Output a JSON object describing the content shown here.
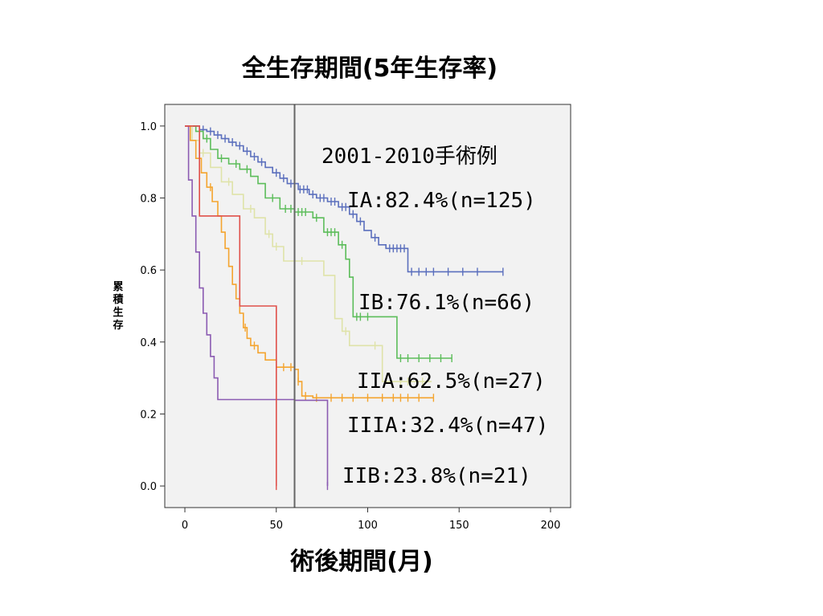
{
  "header": {
    "title": "全生存期間(5年生存率)"
  },
  "chart_data": {
    "type": "line",
    "subtype": "kaplan-meier-step",
    "title": "全生存期間(5年生存率)",
    "xlabel": "術後期間(月)",
    "ylabel": "累積生存",
    "xlim": [
      -11,
      211
    ],
    "ylim": [
      -0.06,
      1.06
    ],
    "x_ticks": [
      0,
      50,
      100,
      150,
      200
    ],
    "y_ticks": [
      0.0,
      0.2,
      0.4,
      0.6,
      0.8,
      1.0
    ],
    "y_tick_labels": [
      "0.0",
      "0.2",
      "0.4",
      "0.6",
      "0.8",
      "1.0"
    ],
    "grid": false,
    "background": "#f2f2f2",
    "reference_line_x": 60,
    "reference_line_color": "#666666",
    "annotation_heading": "2001-2010手術例",
    "series": [
      {
        "name": "IA",
        "label": "IA:82.4%(n=125)",
        "color": "#5b6fbd",
        "points": [
          [
            0,
            1.0
          ],
          [
            8,
            1.0
          ],
          [
            8,
            0.99
          ],
          [
            12,
            0.99
          ],
          [
            12,
            0.985
          ],
          [
            16,
            0.985
          ],
          [
            16,
            0.975
          ],
          [
            20,
            0.975
          ],
          [
            20,
            0.965
          ],
          [
            24,
            0.965
          ],
          [
            24,
            0.955
          ],
          [
            28,
            0.955
          ],
          [
            28,
            0.945
          ],
          [
            32,
            0.945
          ],
          [
            32,
            0.93
          ],
          [
            36,
            0.93
          ],
          [
            36,
            0.915
          ],
          [
            40,
            0.915
          ],
          [
            40,
            0.9
          ],
          [
            44,
            0.9
          ],
          [
            44,
            0.885
          ],
          [
            48,
            0.885
          ],
          [
            48,
            0.87
          ],
          [
            52,
            0.87
          ],
          [
            52,
            0.855
          ],
          [
            56,
            0.855
          ],
          [
            56,
            0.84
          ],
          [
            62,
            0.84
          ],
          [
            62,
            0.824
          ],
          [
            68,
            0.824
          ],
          [
            68,
            0.81
          ],
          [
            72,
            0.81
          ],
          [
            72,
            0.8
          ],
          [
            78,
            0.8
          ],
          [
            78,
            0.79
          ],
          [
            84,
            0.79
          ],
          [
            84,
            0.775
          ],
          [
            90,
            0.775
          ],
          [
            90,
            0.755
          ],
          [
            94,
            0.755
          ],
          [
            94,
            0.735
          ],
          [
            98,
            0.735
          ],
          [
            98,
            0.71
          ],
          [
            102,
            0.71
          ],
          [
            102,
            0.69
          ],
          [
            106,
            0.69
          ],
          [
            106,
            0.67
          ],
          [
            110,
            0.67
          ],
          [
            110,
            0.66
          ],
          [
            122,
            0.66
          ],
          [
            122,
            0.595
          ],
          [
            174,
            0.595
          ]
        ],
        "censor_x": [
          10,
          14,
          18,
          22,
          26,
          30,
          34,
          38,
          42,
          50,
          54,
          58,
          60,
          63,
          65,
          67,
          70,
          74,
          76,
          80,
          82,
          86,
          88,
          92,
          96,
          104,
          112,
          114,
          116,
          118,
          120,
          124,
          128,
          132,
          136,
          144,
          152,
          160,
          174
        ]
      },
      {
        "name": "IB",
        "label": "IB:76.1%(n=66)",
        "color": "#5cbd5a",
        "points": [
          [
            0,
            1.0
          ],
          [
            6,
            1.0
          ],
          [
            6,
            0.985
          ],
          [
            10,
            0.985
          ],
          [
            10,
            0.965
          ],
          [
            14,
            0.965
          ],
          [
            14,
            0.935
          ],
          [
            18,
            0.935
          ],
          [
            18,
            0.91
          ],
          [
            24,
            0.91
          ],
          [
            24,
            0.895
          ],
          [
            30,
            0.895
          ],
          [
            30,
            0.88
          ],
          [
            36,
            0.88
          ],
          [
            36,
            0.86
          ],
          [
            40,
            0.86
          ],
          [
            40,
            0.84
          ],
          [
            44,
            0.84
          ],
          [
            44,
            0.8
          ],
          [
            52,
            0.8
          ],
          [
            52,
            0.77
          ],
          [
            60,
            0.77
          ],
          [
            60,
            0.761
          ],
          [
            70,
            0.761
          ],
          [
            70,
            0.745
          ],
          [
            76,
            0.745
          ],
          [
            76,
            0.705
          ],
          [
            84,
            0.705
          ],
          [
            84,
            0.67
          ],
          [
            88,
            0.67
          ],
          [
            88,
            0.63
          ],
          [
            90,
            0.63
          ],
          [
            90,
            0.58
          ],
          [
            92,
            0.58
          ],
          [
            92,
            0.47
          ],
          [
            98,
            0.47
          ],
          [
            98,
            0.47
          ],
          [
            116,
            0.47
          ],
          [
            116,
            0.355
          ],
          [
            146,
            0.355
          ]
        ],
        "censor_x": [
          12,
          20,
          28,
          34,
          48,
          55,
          58,
          62,
          64,
          66,
          72,
          78,
          80,
          82,
          86,
          94,
          96,
          100,
          118,
          122,
          128,
          134,
          140,
          146
        ]
      },
      {
        "name": "IIA",
        "label": "IIA:62.5%(n=27)",
        "color": "#dfe3a9",
        "points": [
          [
            0,
            1.0
          ],
          [
            4,
            1.0
          ],
          [
            4,
            0.96
          ],
          [
            8,
            0.96
          ],
          [
            8,
            0.925
          ],
          [
            14,
            0.925
          ],
          [
            14,
            0.885
          ],
          [
            20,
            0.885
          ],
          [
            20,
            0.845
          ],
          [
            26,
            0.845
          ],
          [
            26,
            0.81
          ],
          [
            32,
            0.81
          ],
          [
            32,
            0.77
          ],
          [
            38,
            0.77
          ],
          [
            38,
            0.745
          ],
          [
            44,
            0.745
          ],
          [
            44,
            0.7
          ],
          [
            48,
            0.7
          ],
          [
            48,
            0.665
          ],
          [
            54,
            0.665
          ],
          [
            54,
            0.625
          ],
          [
            76,
            0.625
          ],
          [
            76,
            0.585
          ],
          [
            82,
            0.585
          ],
          [
            82,
            0.465
          ],
          [
            86,
            0.465
          ],
          [
            86,
            0.43
          ],
          [
            90,
            0.43
          ],
          [
            90,
            0.39
          ],
          [
            108,
            0.39
          ],
          [
            108,
            0.29
          ],
          [
            135,
            0.29
          ]
        ],
        "censor_x": [
          10,
          24,
          36,
          46,
          50,
          64,
          88,
          104,
          118,
          122,
          130
        ]
      },
      {
        "name": "IIIA",
        "label": "IIIA:32.4%(n=47)",
        "color": "#f4a42e",
        "points": [
          [
            0,
            1.0
          ],
          [
            3,
            1.0
          ],
          [
            3,
            0.96
          ],
          [
            6,
            0.96
          ],
          [
            6,
            0.91
          ],
          [
            9,
            0.91
          ],
          [
            9,
            0.87
          ],
          [
            12,
            0.87
          ],
          [
            12,
            0.83
          ],
          [
            15,
            0.83
          ],
          [
            15,
            0.79
          ],
          [
            18,
            0.79
          ],
          [
            18,
            0.75
          ],
          [
            20,
            0.75
          ],
          [
            20,
            0.705
          ],
          [
            22,
            0.705
          ],
          [
            22,
            0.66
          ],
          [
            24,
            0.66
          ],
          [
            24,
            0.61
          ],
          [
            26,
            0.61
          ],
          [
            26,
            0.56
          ],
          [
            28,
            0.56
          ],
          [
            28,
            0.52
          ],
          [
            30,
            0.52
          ],
          [
            30,
            0.48
          ],
          [
            32,
            0.48
          ],
          [
            32,
            0.44
          ],
          [
            34,
            0.44
          ],
          [
            34,
            0.41
          ],
          [
            36,
            0.41
          ],
          [
            36,
            0.39
          ],
          [
            40,
            0.39
          ],
          [
            40,
            0.37
          ],
          [
            44,
            0.37
          ],
          [
            44,
            0.35
          ],
          [
            50,
            0.35
          ],
          [
            50,
            0.33
          ],
          [
            60,
            0.33
          ],
          [
            60,
            0.324
          ],
          [
            62,
            0.324
          ],
          [
            62,
            0.29
          ],
          [
            64,
            0.29
          ],
          [
            64,
            0.25
          ],
          [
            70,
            0.25
          ],
          [
            70,
            0.245
          ],
          [
            136,
            0.245
          ]
        ],
        "censor_x": [
          14,
          33,
          38,
          54,
          58,
          62,
          66,
          72,
          80,
          86,
          92,
          100,
          108,
          114,
          118,
          122,
          128,
          136
        ]
      },
      {
        "name": "IIB",
        "label": "IIB:23.8%(n=21)",
        "color": "#8b5bb2",
        "points": [
          [
            0,
            1.0
          ],
          [
            2,
            1.0
          ],
          [
            2,
            0.85
          ],
          [
            4,
            0.85
          ],
          [
            4,
            0.75
          ],
          [
            6,
            0.75
          ],
          [
            6,
            0.65
          ],
          [
            8,
            0.65
          ],
          [
            8,
            0.55
          ],
          [
            10,
            0.55
          ],
          [
            10,
            0.48
          ],
          [
            12,
            0.48
          ],
          [
            12,
            0.42
          ],
          [
            14,
            0.42
          ],
          [
            14,
            0.36
          ],
          [
            16,
            0.36
          ],
          [
            16,
            0.3
          ],
          [
            18,
            0.3
          ],
          [
            18,
            0.24
          ],
          [
            60,
            0.24
          ],
          [
            60,
            0.238
          ],
          [
            62,
            0.238
          ],
          [
            62,
            0.238
          ],
          [
            78,
            0.238
          ],
          [
            78,
            0.0
          ]
        ],
        "censor_x": [
          60,
          78
        ]
      },
      {
        "name": "IIB-red",
        "label": "",
        "color": "#e0504a",
        "points": [
          [
            0,
            1.0
          ],
          [
            8,
            1.0
          ],
          [
            8,
            0.75
          ],
          [
            30,
            0.75
          ],
          [
            30,
            0.5
          ],
          [
            50,
            0.5
          ],
          [
            50,
            0.0
          ]
        ],
        "censor_x": [
          50
        ]
      }
    ]
  }
}
